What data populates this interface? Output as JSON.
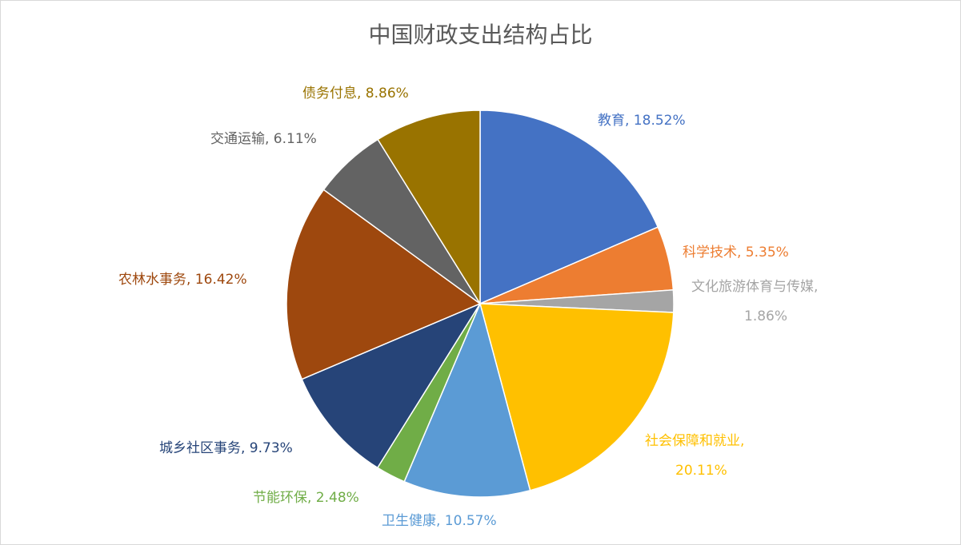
{
  "chart_data": {
    "type": "pie",
    "title": "中国财政支出结构占比",
    "slices": [
      {
        "name": "教育",
        "value": 18.52,
        "label": "教育, 18.52%",
        "color": "#4472C4"
      },
      {
        "name": "科学技术",
        "value": 5.35,
        "label": "科学技术, 5.35%",
        "color": "#ED7D31"
      },
      {
        "name": "文化旅游体育与传媒",
        "value": 1.86,
        "label_line1": "文化旅游体育与传媒,",
        "label_line2": "1.86%",
        "color": "#A5A5A5"
      },
      {
        "name": "社会保障和就业",
        "value": 20.11,
        "label_line1": "社会保障和就业,",
        "label_line2": "20.11%",
        "color": "#FFC000"
      },
      {
        "name": "卫生健康",
        "value": 10.57,
        "label": "卫生健康, 10.57%",
        "color": "#5B9BD5"
      },
      {
        "name": "节能环保",
        "value": 2.48,
        "label": "节能环保, 2.48%",
        "color": "#70AD47"
      },
      {
        "name": "城乡社区事务",
        "value": 9.73,
        "label": "城乡社区事务, 9.73%",
        "color": "#264478"
      },
      {
        "name": "农林水事务",
        "value": 16.42,
        "label": "农林水事务, 16.42%",
        "color": "#9E480E"
      },
      {
        "name": "交通运输",
        "value": 6.11,
        "label": "交通运输, 6.11%",
        "color": "#636363"
      },
      {
        "name": "债务付息",
        "value": 8.86,
        "label": "债务付息, 8.86%",
        "color": "#997300"
      }
    ]
  }
}
